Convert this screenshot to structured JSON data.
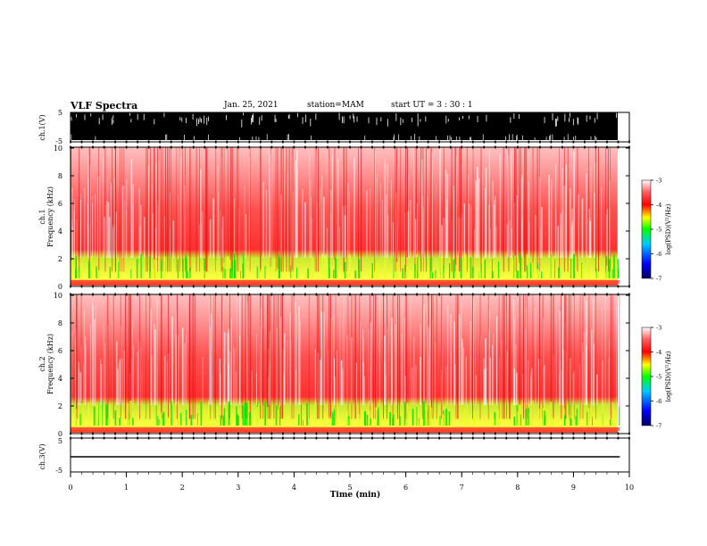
{
  "header": {
    "title": "VLF Spectra",
    "date": "Jan. 25, 2021",
    "station": "station=MAM",
    "start": "start  UT  =   3  : 30 : 1"
  },
  "chart_data": [
    {
      "type": "line",
      "panel": "ch1-waveform",
      "ylabel": "ch.1(V)",
      "yticks": [
        "5",
        "-5"
      ],
      "ylim": [
        -5,
        5
      ],
      "description_level": "dense impulsive signal filling most of range"
    },
    {
      "type": "heatmap",
      "panel": "ch1-spectrogram",
      "ylabel": "ch.1\nFrequency (kHz)",
      "ylabel_lines": [
        "ch.1",
        "Frequency  (kHz)"
      ],
      "yticks": [
        "0",
        "2",
        "4",
        "6",
        "8",
        "10"
      ],
      "ylim": [
        0,
        10
      ],
      "colorbar": {
        "label": "log(PSD)(V²/Hz)",
        "ticks": [
          "-3",
          "-4",
          "-5",
          "-6",
          "-7"
        ],
        "range": [
          -7,
          -3
        ],
        "colors": [
          "#000080",
          "#0000ff",
          "#00ff00",
          "#ffff00",
          "#ff0000",
          "#ffffff"
        ]
      }
    },
    {
      "type": "heatmap",
      "panel": "ch2-spectrogram",
      "ylabel": "ch.2\nFrequency (kHz)",
      "ylabel_lines": [
        "ch.2",
        "Frequency  (kHz)"
      ],
      "yticks": [
        "0",
        "2",
        "4",
        "6",
        "8",
        "10"
      ],
      "ylim": [
        0,
        10
      ],
      "colorbar": {
        "label": "log(PSD)(V²/Hz)",
        "ticks": [
          "-3",
          "-4",
          "-5",
          "-6",
          "-7"
        ],
        "range": [
          -7,
          -3
        ],
        "colors": [
          "#000080",
          "#0000ff",
          "#00ff00",
          "#ffff00",
          "#ff0000",
          "#ffffff"
        ]
      }
    },
    {
      "type": "line",
      "panel": "ch3-waveform",
      "ylabel": "ch.3(V)",
      "yticks": [
        "5",
        "-5"
      ],
      "ylim": [
        -5,
        5
      ],
      "series": [
        {
          "x": [
            0,
            9.8
          ],
          "y": [
            -1.6,
            -1.6
          ]
        }
      ]
    }
  ],
  "xaxis": {
    "label": "Time  (min)",
    "ticks": [
      "0",
      "1",
      "2",
      "3",
      "4",
      "5",
      "6",
      "7",
      "8",
      "9",
      "10"
    ],
    "xlim": [
      0,
      10
    ],
    "data_end": 9.83
  }
}
